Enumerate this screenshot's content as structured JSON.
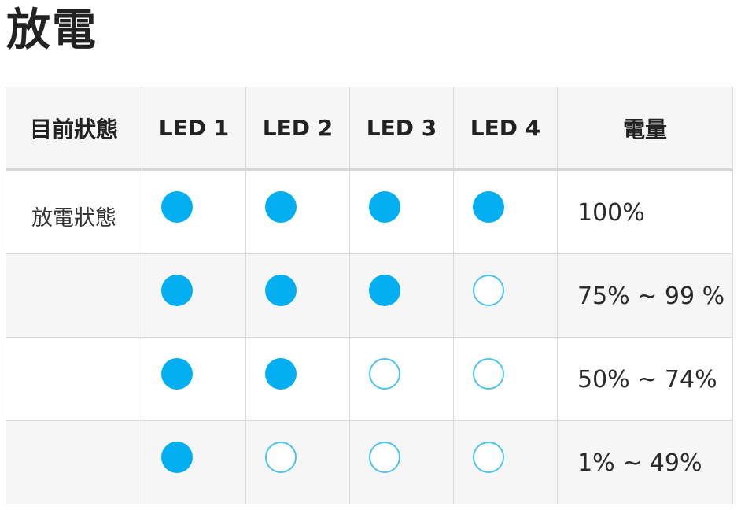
{
  "page": {
    "title": "放電"
  },
  "table": {
    "headers": [
      "目前狀態",
      "LED 1",
      "LED 2",
      "LED 3",
      "LED 4",
      "電量"
    ],
    "rows": [
      {
        "state": "放電狀態",
        "leds": [
          "on",
          "on",
          "on",
          "on"
        ],
        "level": "100%"
      },
      {
        "state": "",
        "leds": [
          "on",
          "on",
          "on",
          "off"
        ],
        "level": "75% ~ 99 %"
      },
      {
        "state": "",
        "leds": [
          "on",
          "on",
          "off",
          "off"
        ],
        "level": "50% ~ 74%"
      },
      {
        "state": "",
        "leds": [
          "on",
          "off",
          "off",
          "off"
        ],
        "level": "1% ~ 49%"
      }
    ]
  },
  "colors": {
    "led_on": "#03aff0",
    "led_off_border": "#4cc3f2",
    "header_bg": "#f6f6f6",
    "grid_border": "#dadada"
  }
}
